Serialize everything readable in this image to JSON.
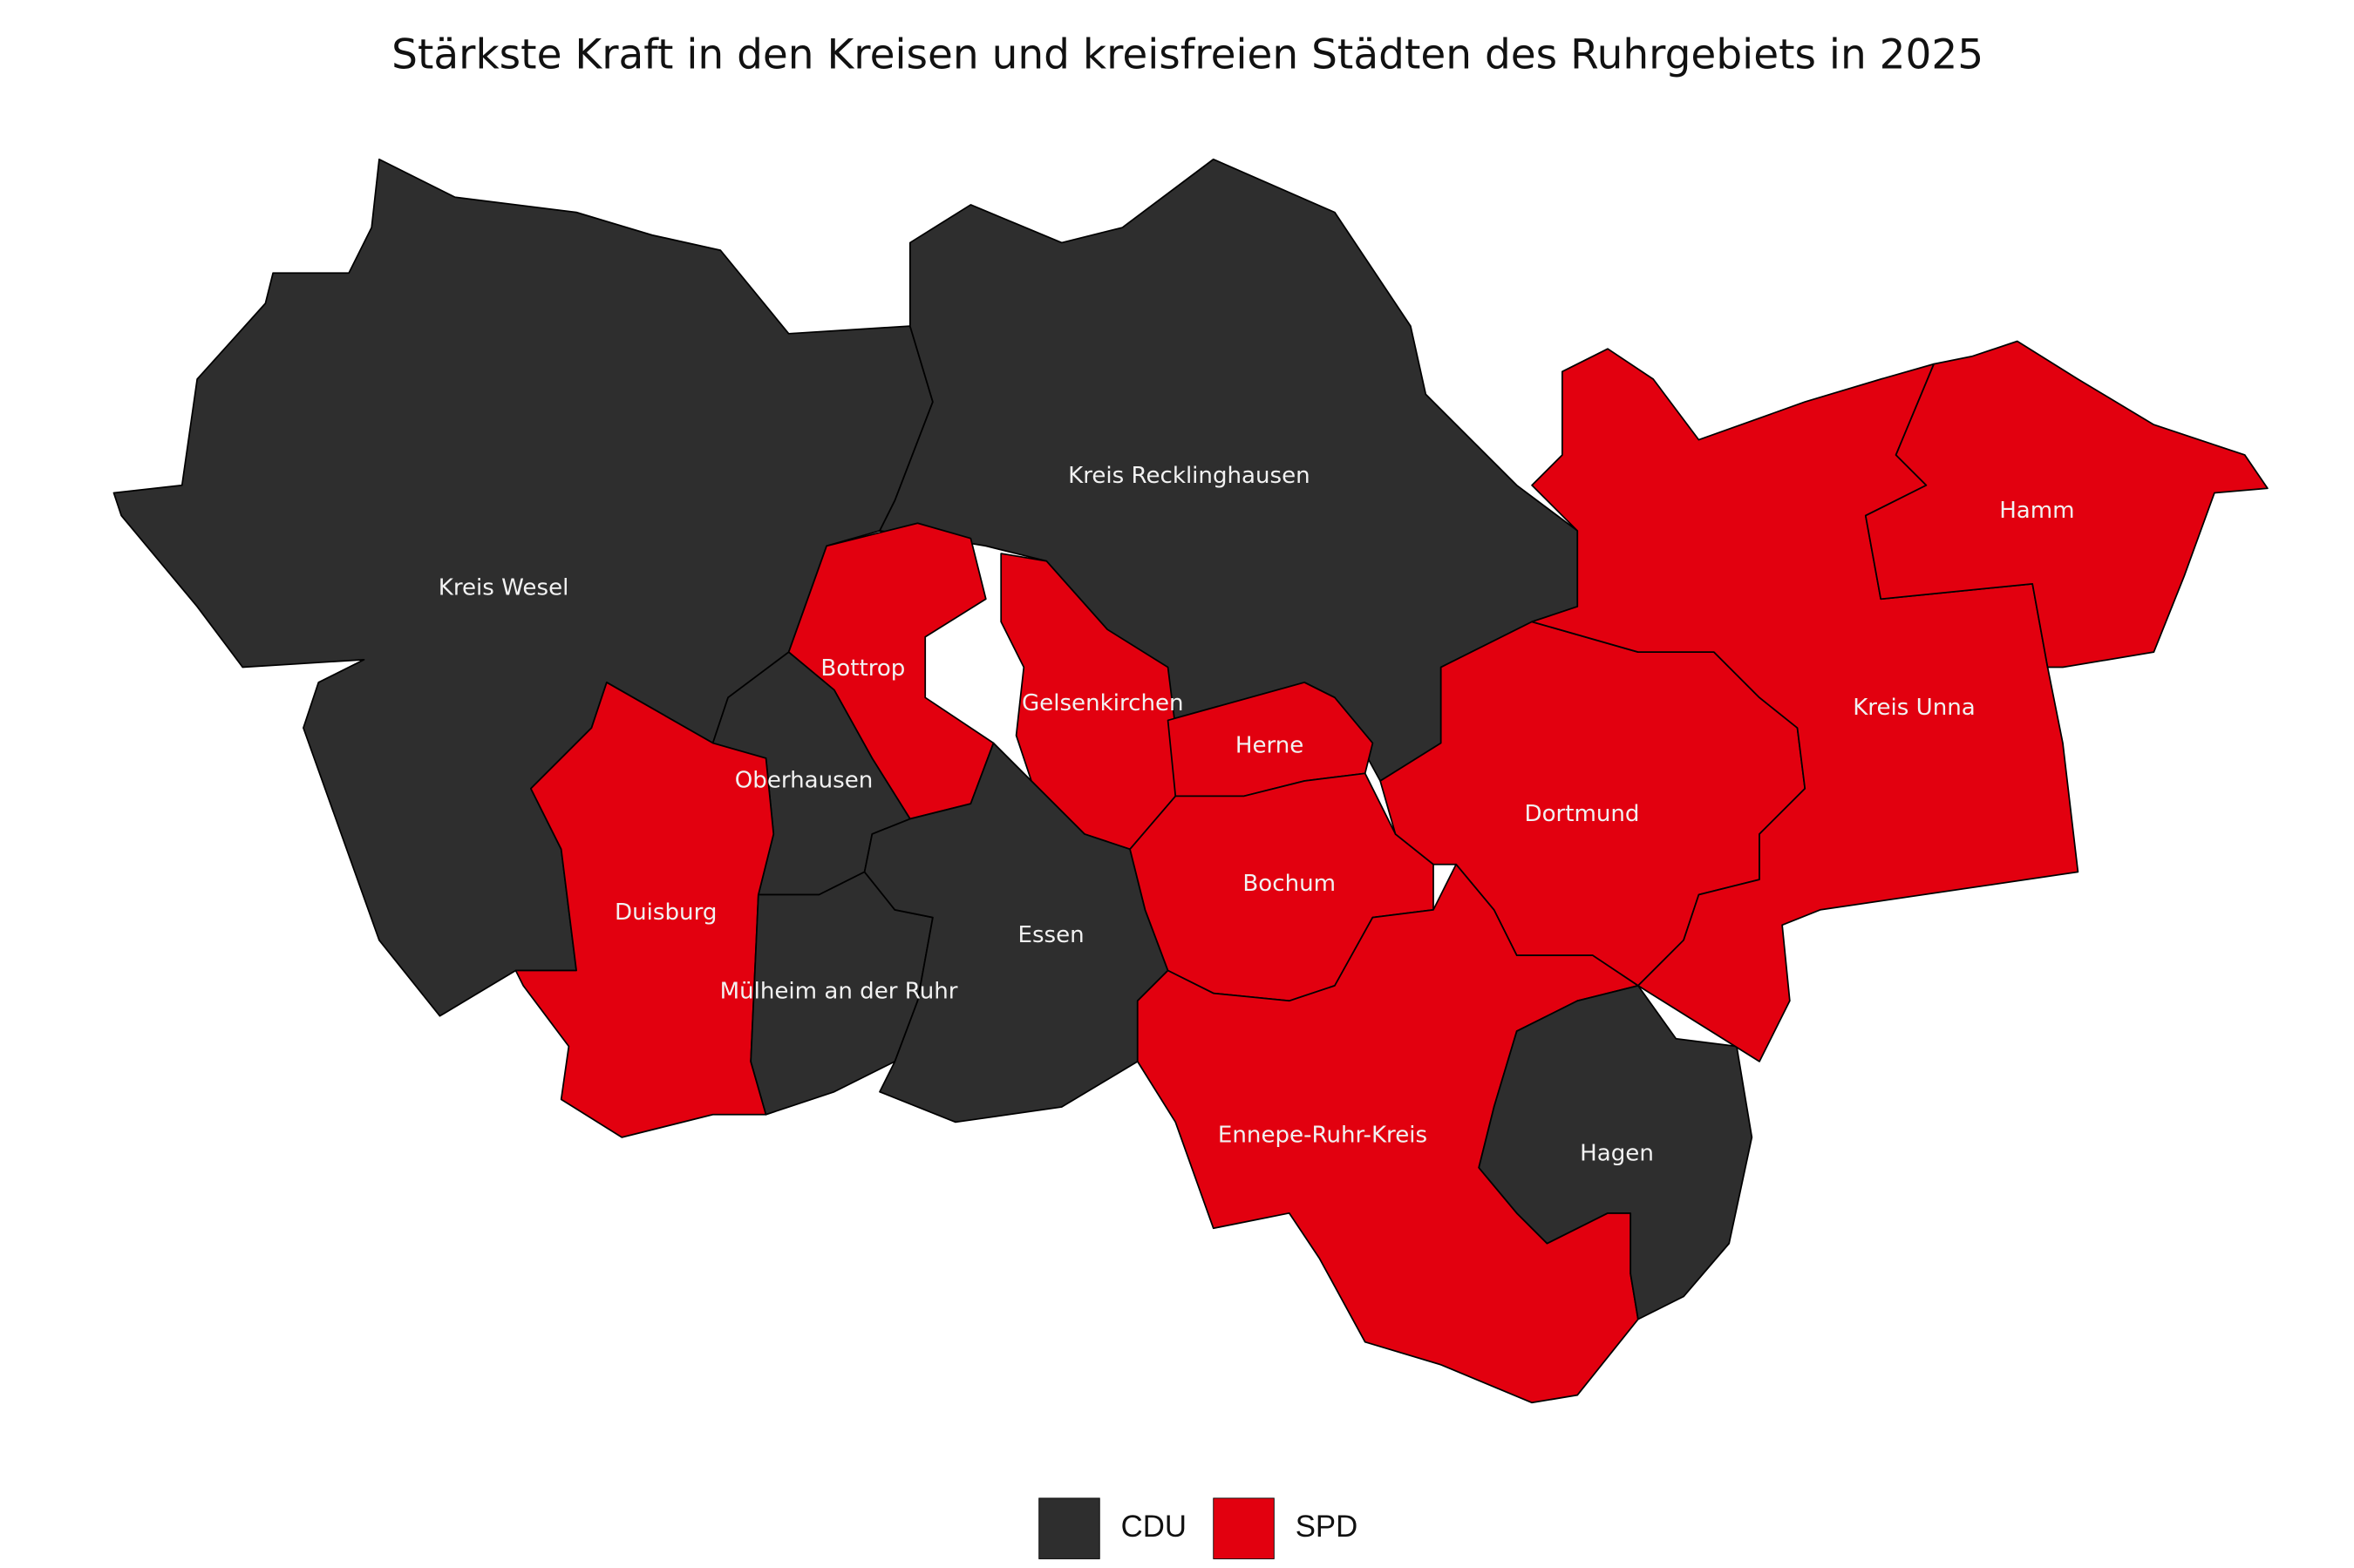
{
  "title": "Stärkste Kraft in den Kreisen und kreisfreien Städten des Ruhrgebiets in 2025",
  "legend": [
    {
      "label": "CDU",
      "color": "#2e2e2e"
    },
    {
      "label": "SPD",
      "color": "#e2000f"
    }
  ],
  "regions": [
    {
      "name": "Kreis Wesel",
      "party": "CDU"
    },
    {
      "name": "Kreis Recklinghausen",
      "party": "CDU"
    },
    {
      "name": "Bottrop",
      "party": "SPD"
    },
    {
      "name": "Gelsenkirchen",
      "party": "SPD"
    },
    {
      "name": "Herne",
      "party": "SPD"
    },
    {
      "name": "Oberhausen",
      "party": "CDU"
    },
    {
      "name": "Duisburg",
      "party": "SPD"
    },
    {
      "name": "Mülheim an der Ruhr",
      "party": "CDU"
    },
    {
      "name": "Essen",
      "party": "CDU"
    },
    {
      "name": "Bochum",
      "party": "SPD"
    },
    {
      "name": "Dortmund",
      "party": "SPD"
    },
    {
      "name": "Ennepe-Ruhr-Kreis",
      "party": "SPD"
    },
    {
      "name": "Hagen",
      "party": "CDU"
    },
    {
      "name": "Kreis Unna",
      "party": "SPD"
    },
    {
      "name": "Hamm",
      "party": "SPD"
    }
  ]
}
